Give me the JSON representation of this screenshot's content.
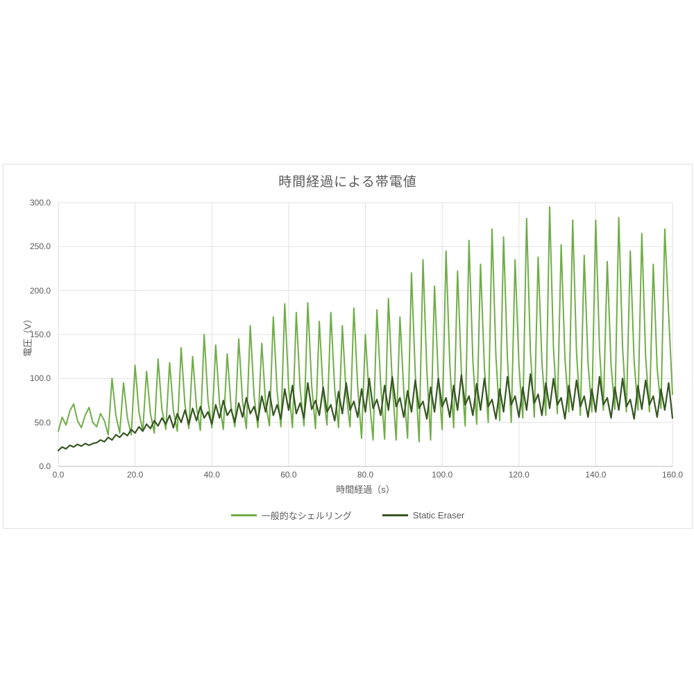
{
  "page": {
    "background": "#ffffff",
    "panel_border": "#e0e0e0"
  },
  "chart_data": {
    "type": "line",
    "title": "時間経過による帯電値",
    "xlabel": "時間経過（s）",
    "ylabel": "電圧（V）",
    "xlim": [
      0,
      160
    ],
    "ylim": [
      0,
      300
    ],
    "x_step": 1,
    "grid": true,
    "grid_color": "#e2e2e2",
    "axis_line_color": "#c6c6c6",
    "legend_position": "bottom",
    "x_tick_labels": [
      "0.0",
      "20.0",
      "40.0",
      "60.0",
      "80.0",
      "100.0",
      "120.0",
      "140.0",
      "160.0"
    ],
    "y_tick_labels": [
      "0.0",
      "50.0",
      "100.0",
      "150.0",
      "200.0",
      "250.0",
      "300.0"
    ],
    "series": [
      {
        "name": "一般的なシェルリング",
        "color": "#70ad47",
        "stroke_width": 2,
        "values": [
          40,
          56,
          47,
          63,
          71,
          52,
          44,
          58,
          67,
          50,
          45,
          60,
          52,
          36,
          100,
          58,
          38,
          95,
          55,
          36,
          115,
          62,
          40,
          108,
          60,
          38,
          122,
          65,
          42,
          118,
          63,
          40,
          135,
          70,
          43,
          125,
          68,
          41,
          150,
          75,
          44,
          138,
          72,
          42,
          128,
          68,
          45,
          145,
          74,
          43,
          160,
          80,
          44,
          140,
          72,
          46,
          170,
          85,
          45,
          185,
          90,
          44,
          175,
          88,
          46,
          186,
          92,
          43,
          165,
          84,
          47,
          175,
          88,
          44,
          160,
          82,
          45,
          180,
          90,
          32,
          150,
          78,
          30,
          178,
          92,
          31,
          191,
          95,
          30,
          170,
          86,
          32,
          220,
          105,
          28,
          235,
          110,
          30,
          205,
          100,
          42,
          245,
          115,
          44,
          222,
          108,
          46,
          257,
          120,
          48,
          230,
          112,
          50,
          270,
          125,
          52,
          261,
          122,
          50,
          235,
          115,
          55,
          282,
          130,
          56,
          238,
          118,
          58,
          295,
          135,
          60,
          252,
          122,
          62,
          280,
          130,
          58,
          240,
          118,
          62,
          280,
          132,
          64,
          233,
          115,
          65,
          283,
          135,
          62,
          245,
          120,
          64,
          265,
          125,
          62,
          230,
          112,
          66,
          270,
          173,
          82
        ]
      },
      {
        "name": "Static Eraser",
        "color": "#375623",
        "stroke_width": 2.2,
        "values": [
          18,
          22,
          20,
          24,
          22,
          25,
          23,
          26,
          24,
          26,
          27,
          30,
          28,
          33,
          30,
          36,
          33,
          38,
          35,
          42,
          38,
          45,
          40,
          48,
          43,
          52,
          46,
          55,
          48,
          58,
          44,
          60,
          50,
          64,
          48,
          66,
          52,
          68,
          55,
          62,
          48,
          70,
          55,
          75,
          58,
          65,
          50,
          72,
          56,
          78,
          60,
          68,
          52,
          80,
          62,
          85,
          58,
          70,
          54,
          88,
          64,
          92,
          60,
          72,
          55,
          95,
          65,
          75,
          58,
          90,
          62,
          70,
          52,
          85,
          60,
          95,
          64,
          74,
          56,
          88,
          62,
          100,
          66,
          76,
          58,
          92,
          64,
          102,
          68,
          78,
          56,
          86,
          62,
          98,
          66,
          74,
          54,
          90,
          62,
          100,
          68,
          78,
          56,
          92,
          64,
          104,
          70,
          80,
          58,
          94,
          64,
          100,
          68,
          76,
          54,
          88,
          62,
          102,
          70,
          80,
          56,
          90,
          64,
          105,
          72,
          82,
          58,
          95,
          66,
          100,
          70,
          78,
          54,
          92,
          64,
          98,
          68,
          80,
          56,
          88,
          62,
          102,
          70,
          78,
          55,
          90,
          64,
          100,
          68,
          76,
          54,
          92,
          65,
          98,
          70,
          80,
          56,
          88,
          64,
          95,
          55
        ]
      }
    ]
  }
}
